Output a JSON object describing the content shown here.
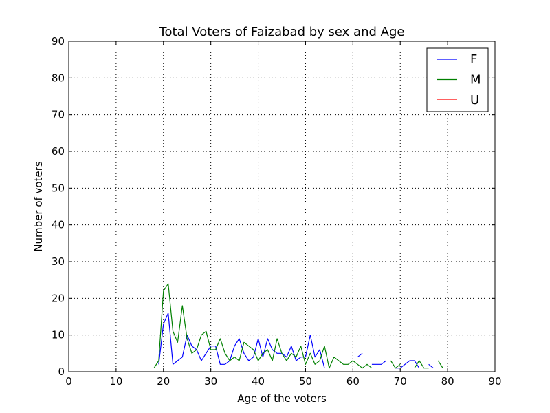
{
  "chart_data": {
    "type": "line",
    "title": "Total Voters of Faizabad by sex and Age",
    "xlabel": "Age of the voters",
    "ylabel": "Number of voters",
    "xlim": [
      0,
      90
    ],
    "ylim": [
      0,
      90
    ],
    "xticks": [
      0,
      10,
      20,
      30,
      40,
      50,
      60,
      70,
      80,
      90
    ],
    "yticks": [
      0,
      10,
      20,
      30,
      40,
      50,
      60,
      70,
      80,
      90
    ],
    "grid": true,
    "legend_position": "top-right",
    "series": [
      {
        "name": "F",
        "color": "#0000ff",
        "segments": [
          [
            [
              19,
              2
            ],
            [
              20,
              13
            ],
            [
              21,
              16
            ],
            [
              22,
              2
            ],
            [
              23,
              3
            ],
            [
              24,
              4
            ],
            [
              25,
              10
            ],
            [
              26,
              7
            ],
            [
              27,
              6
            ],
            [
              28,
              3
            ],
            [
              29,
              5
            ],
            [
              30,
              7
            ],
            [
              31,
              7
            ],
            [
              32,
              2
            ],
            [
              33,
              2
            ],
            [
              34,
              3
            ],
            [
              35,
              7
            ],
            [
              36,
              9
            ],
            [
              37,
              5
            ],
            [
              38,
              3
            ],
            [
              39,
              4
            ],
            [
              40,
              9
            ],
            [
              41,
              4
            ],
            [
              42,
              9
            ],
            [
              43,
              6
            ],
            [
              44,
              5
            ],
            [
              45,
              5
            ],
            [
              46,
              4
            ],
            [
              47,
              7
            ],
            [
              48,
              3
            ],
            [
              49,
              4
            ],
            [
              50,
              4
            ],
            [
              51,
              10
            ],
            [
              52,
              4
            ],
            [
              53,
              6
            ],
            [
              54,
              1
            ]
          ],
          [
            [
              61,
              4
            ],
            [
              62,
              5
            ]
          ],
          [
            [
              64,
              2
            ],
            [
              65,
              2
            ],
            [
              66,
              2
            ],
            [
              67,
              3
            ]
          ],
          [
            [
              69,
              1
            ],
            [
              70,
              1
            ],
            [
              71,
              2
            ],
            [
              72,
              3
            ],
            [
              73,
              3
            ],
            [
              74,
              1
            ]
          ],
          [
            [
              76,
              2
            ],
            [
              77,
              1
            ]
          ]
        ]
      },
      {
        "name": "M",
        "color": "#008000",
        "segments": [
          [
            [
              18,
              1
            ],
            [
              19,
              3
            ],
            [
              20,
              22
            ],
            [
              21,
              24
            ],
            [
              22,
              11
            ],
            [
              23,
              8
            ],
            [
              24,
              18
            ],
            [
              25,
              9
            ],
            [
              26,
              5
            ],
            [
              27,
              6
            ],
            [
              28,
              10
            ],
            [
              29,
              11
            ],
            [
              30,
              6
            ],
            [
              31,
              6
            ],
            [
              32,
              9
            ],
            [
              33,
              5
            ],
            [
              34,
              3
            ],
            [
              35,
              4
            ],
            [
              36,
              3
            ],
            [
              37,
              8
            ],
            [
              38,
              7
            ],
            [
              39,
              6
            ],
            [
              40,
              3
            ],
            [
              41,
              5
            ],
            [
              42,
              6
            ],
            [
              43,
              3
            ],
            [
              44,
              9
            ],
            [
              45,
              5
            ],
            [
              46,
              3
            ],
            [
              47,
              5
            ],
            [
              48,
              4
            ],
            [
              49,
              7
            ],
            [
              50,
              2
            ],
            [
              51,
              5
            ],
            [
              52,
              2
            ],
            [
              53,
              3
            ],
            [
              54,
              7
            ],
            [
              55,
              1
            ],
            [
              56,
              4
            ],
            [
              57,
              3
            ],
            [
              58,
              2
            ],
            [
              59,
              2
            ],
            [
              60,
              3
            ],
            [
              61,
              2
            ],
            [
              62,
              1
            ],
            [
              63,
              2
            ],
            [
              64,
              1
            ]
          ],
          [
            [
              68,
              3
            ],
            [
              69,
              1
            ],
            [
              70,
              2
            ]
          ],
          [
            [
              73,
              1
            ],
            [
              74,
              3
            ],
            [
              75,
              1
            ],
            [
              76,
              1
            ]
          ],
          [
            [
              78,
              3
            ],
            [
              79,
              1
            ]
          ]
        ]
      },
      {
        "name": "U",
        "color": "#ff0000",
        "segments": []
      }
    ]
  }
}
